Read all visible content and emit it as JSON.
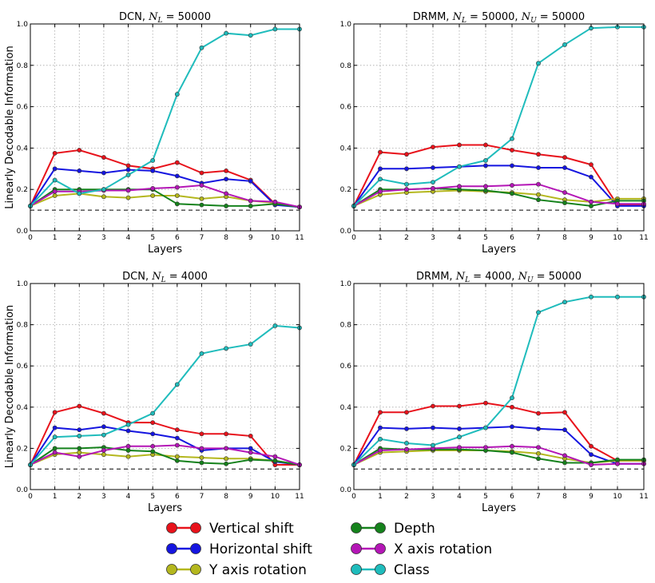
{
  "legend": {
    "items": [
      {
        "name": "Vertical shift",
        "color": "#e8121b"
      },
      {
        "name": "Horizontal shift",
        "color": "#1515e0"
      },
      {
        "name": "Y axis rotation",
        "color": "#b4b71e"
      },
      {
        "name": "Depth",
        "color": "#15821c"
      },
      {
        "name": "X axis rotation",
        "color": "#b416b6"
      },
      {
        "name": "Class",
        "color": "#1fbcbc"
      }
    ]
  },
  "chart_data": [
    {
      "type": "line",
      "title": "DCN, N_L = 50000",
      "title_parts": [
        "DCN, ",
        "N",
        "L",
        " = 50000"
      ],
      "xlabel": "Layers",
      "ylabel": "Linearly Decodable Information",
      "xlim": [
        0,
        11
      ],
      "ylim": [
        0,
        1.0
      ],
      "xticks": [
        "0",
        "1",
        "2",
        "3",
        "4",
        "5",
        "6",
        "7",
        "8",
        "9",
        "10",
        "11"
      ],
      "yticks": [
        "0.0",
        "0.2",
        "0.4",
        "0.6",
        "0.8",
        "1.0"
      ],
      "grid": true,
      "baseline": 0.1,
      "x": [
        0,
        1,
        2,
        3,
        4,
        5,
        6,
        7,
        8,
        9,
        10,
        11
      ],
      "series": [
        {
          "name": "Vertical shift",
          "values": [
            0.12,
            0.375,
            0.39,
            0.355,
            0.315,
            0.3,
            0.33,
            0.28,
            0.29,
            0.245,
            0.13,
            0.115
          ]
        },
        {
          "name": "Horizontal shift",
          "values": [
            0.12,
            0.3,
            0.29,
            0.28,
            0.295,
            0.29,
            0.265,
            0.23,
            0.25,
            0.24,
            0.125,
            0.115
          ]
        },
        {
          "name": "Y axis rotation",
          "values": [
            0.12,
            0.17,
            0.18,
            0.165,
            0.16,
            0.17,
            0.17,
            0.155,
            0.165,
            0.145,
            0.135,
            0.115
          ]
        },
        {
          "name": "Depth",
          "values": [
            0.12,
            0.2,
            0.2,
            0.2,
            0.2,
            0.2,
            0.13,
            0.125,
            0.12,
            0.12,
            0.13,
            0.115
          ]
        },
        {
          "name": "X axis rotation",
          "values": [
            0.12,
            0.19,
            0.19,
            0.195,
            0.195,
            0.205,
            0.21,
            0.22,
            0.18,
            0.145,
            0.14,
            0.115
          ]
        },
        {
          "name": "Class",
          "values": [
            0.12,
            0.245,
            0.18,
            0.2,
            0.27,
            0.34,
            0.66,
            0.885,
            0.955,
            0.945,
            0.975,
            0.975
          ]
        }
      ]
    },
    {
      "type": "line",
      "title": "DRMM, N_L = 50000, N_U = 50000",
      "title_parts": [
        "DRMM, ",
        "N",
        "L",
        " = 50000, ",
        "N",
        "U",
        " = 50000"
      ],
      "xlabel": "Layers",
      "ylabel": "",
      "xlim": [
        0,
        11
      ],
      "ylim": [
        0,
        1.0
      ],
      "xticks": [
        "0",
        "1",
        "2",
        "3",
        "4",
        "5",
        "6",
        "7",
        "8",
        "9",
        "10",
        "11"
      ],
      "yticks": [
        "0.0",
        "0.2",
        "0.4",
        "0.6",
        "0.8",
        "1.0"
      ],
      "grid": true,
      "baseline": 0.1,
      "x": [
        0,
        1,
        2,
        3,
        4,
        5,
        6,
        7,
        8,
        9,
        10,
        11
      ],
      "series": [
        {
          "name": "Vertical shift",
          "values": [
            0.12,
            0.38,
            0.37,
            0.405,
            0.415,
            0.415,
            0.39,
            0.37,
            0.355,
            0.32,
            0.125,
            0.125
          ]
        },
        {
          "name": "Horizontal shift",
          "values": [
            0.12,
            0.3,
            0.3,
            0.305,
            0.31,
            0.315,
            0.315,
            0.305,
            0.305,
            0.26,
            0.12,
            0.12
          ]
        },
        {
          "name": "Y axis rotation",
          "values": [
            0.12,
            0.175,
            0.185,
            0.19,
            0.195,
            0.19,
            0.185,
            0.175,
            0.15,
            0.14,
            0.155,
            0.155
          ]
        },
        {
          "name": "Depth",
          "values": [
            0.12,
            0.2,
            0.2,
            0.205,
            0.2,
            0.195,
            0.18,
            0.15,
            0.135,
            0.12,
            0.145,
            0.145
          ]
        },
        {
          "name": "X axis rotation",
          "values": [
            0.12,
            0.19,
            0.2,
            0.205,
            0.215,
            0.215,
            0.22,
            0.225,
            0.185,
            0.14,
            0.13,
            0.13
          ]
        },
        {
          "name": "Class",
          "values": [
            0.12,
            0.25,
            0.225,
            0.235,
            0.31,
            0.34,
            0.445,
            0.81,
            0.9,
            0.98,
            0.985,
            0.985
          ]
        }
      ]
    },
    {
      "type": "line",
      "title": "DCN, N_L = 4000",
      "title_parts": [
        "DCN, ",
        "N",
        "L",
        " = 4000"
      ],
      "xlabel": "Layers",
      "ylabel": "Linearly Decodable Information",
      "xlim": [
        0,
        11
      ],
      "ylim": [
        0,
        1.0
      ],
      "xticks": [
        "0",
        "1",
        "2",
        "3",
        "4",
        "5",
        "6",
        "7",
        "8",
        "9",
        "10",
        "11"
      ],
      "yticks": [
        "0.0",
        "0.2",
        "0.4",
        "0.6",
        "0.8",
        "1.0"
      ],
      "grid": true,
      "baseline": 0.1,
      "x": [
        0,
        1,
        2,
        3,
        4,
        5,
        6,
        7,
        8,
        9,
        10,
        11
      ],
      "series": [
        {
          "name": "Vertical shift",
          "values": [
            0.12,
            0.375,
            0.405,
            0.37,
            0.325,
            0.325,
            0.29,
            0.27,
            0.27,
            0.26,
            0.12,
            0.12
          ]
        },
        {
          "name": "Horizontal shift",
          "values": [
            0.12,
            0.3,
            0.29,
            0.305,
            0.285,
            0.27,
            0.25,
            0.19,
            0.2,
            0.2,
            0.135,
            0.12
          ]
        },
        {
          "name": "Y axis rotation",
          "values": [
            0.12,
            0.17,
            0.18,
            0.17,
            0.16,
            0.17,
            0.16,
            0.155,
            0.15,
            0.15,
            0.14,
            0.12
          ]
        },
        {
          "name": "Depth",
          "values": [
            0.12,
            0.2,
            0.2,
            0.205,
            0.19,
            0.185,
            0.14,
            0.13,
            0.125,
            0.145,
            0.14,
            0.12
          ]
        },
        {
          "name": "X axis rotation",
          "values": [
            0.12,
            0.18,
            0.16,
            0.19,
            0.21,
            0.21,
            0.215,
            0.2,
            0.2,
            0.18,
            0.16,
            0.12
          ]
        },
        {
          "name": "Class",
          "values": [
            0.12,
            0.255,
            0.26,
            0.265,
            0.315,
            0.37,
            0.51,
            0.66,
            0.685,
            0.705,
            0.795,
            0.785
          ]
        }
      ]
    },
    {
      "type": "line",
      "title": "DRMM, N_L = 4000, N_U = 50000",
      "title_parts": [
        "DRMM, ",
        "N",
        "L",
        " = 4000, ",
        "N",
        "U",
        " = 50000"
      ],
      "xlabel": "Layers",
      "ylabel": "",
      "xlim": [
        0,
        11
      ],
      "ylim": [
        0,
        1.0
      ],
      "xticks": [
        "0",
        "1",
        "2",
        "3",
        "4",
        "5",
        "6",
        "7",
        "8",
        "9",
        "10",
        "11"
      ],
      "yticks": [
        "0.0",
        "0.2",
        "0.4",
        "0.6",
        "0.8",
        "1.0"
      ],
      "grid": true,
      "baseline": 0.1,
      "x": [
        0,
        1,
        2,
        3,
        4,
        5,
        6,
        7,
        8,
        9,
        10,
        11
      ],
      "series": [
        {
          "name": "Vertical shift",
          "values": [
            0.12,
            0.375,
            0.375,
            0.405,
            0.405,
            0.42,
            0.4,
            0.37,
            0.375,
            0.21,
            0.14,
            0.14
          ]
        },
        {
          "name": "Horizontal shift",
          "values": [
            0.12,
            0.3,
            0.295,
            0.3,
            0.295,
            0.3,
            0.305,
            0.295,
            0.29,
            0.17,
            0.125,
            0.125
          ]
        },
        {
          "name": "Y axis rotation",
          "values": [
            0.12,
            0.18,
            0.185,
            0.19,
            0.19,
            0.19,
            0.185,
            0.175,
            0.15,
            0.13,
            0.14,
            0.14
          ]
        },
        {
          "name": "Depth",
          "values": [
            0.12,
            0.2,
            0.195,
            0.195,
            0.195,
            0.19,
            0.18,
            0.15,
            0.13,
            0.13,
            0.145,
            0.145
          ]
        },
        {
          "name": "X axis rotation",
          "values": [
            0.12,
            0.19,
            0.195,
            0.2,
            0.205,
            0.205,
            0.21,
            0.205,
            0.165,
            0.12,
            0.125,
            0.125
          ]
        },
        {
          "name": "Class",
          "values": [
            0.12,
            0.245,
            0.225,
            0.215,
            0.255,
            0.3,
            0.445,
            0.86,
            0.91,
            0.935,
            0.935,
            0.935
          ]
        }
      ]
    }
  ]
}
